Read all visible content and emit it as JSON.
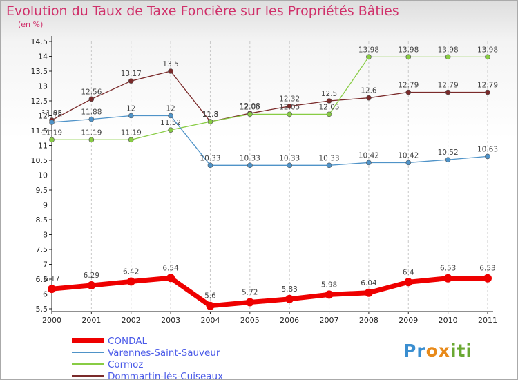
{
  "chart_data": {
    "type": "line",
    "title": "Evolution du Taux de Taxe Foncière sur les Propriétés Bâties",
    "subtitle": "(en %)",
    "x": [
      "2000",
      "2001",
      "2002",
      "2003",
      "2004",
      "2005",
      "2006",
      "2007",
      "2008",
      "2009",
      "2010",
      "2011"
    ],
    "y_ticks": [
      "5.5",
      "6",
      "6.5",
      "7",
      "7.5",
      "8",
      "8.5",
      "9",
      "9.5",
      "10",
      "10.5",
      "11",
      "11.5",
      "12",
      "12.5",
      "13",
      "13.5",
      "14",
      "14.5"
    ],
    "ylim": [
      5.5,
      14.5
    ],
    "grid": "vertical dashed",
    "legend_position": "bottom-left",
    "series": [
      {
        "name": "CONDAL",
        "color": "#ee0000",
        "values": [
          6.17,
          6.29,
          6.42,
          6.54,
          5.6,
          5.72,
          5.83,
          5.98,
          6.04,
          6.4,
          6.53,
          6.53
        ],
        "labels": [
          "6.17",
          "6.29",
          "6.42",
          "6.54",
          "5.6",
          "5.72",
          "5.83",
          "5.98",
          "6.04",
          "6.4",
          "6.53",
          "6.53"
        ]
      },
      {
        "name": "Varennes-Saint-Sauveur",
        "color": "#4f93c8",
        "values": [
          11.78,
          11.88,
          12,
          12,
          10.33,
          10.33,
          10.33,
          10.33,
          10.42,
          10.42,
          10.52,
          10.63
        ],
        "labels": [
          "11.78",
          "11.88",
          "12",
          "12",
          "10.33",
          "10.33",
          "10.33",
          "10.33",
          "10.42",
          "10.42",
          "10.52",
          "10.63"
        ]
      },
      {
        "name": "Cormoz",
        "color": "#88cc44",
        "values": [
          11.19,
          11.19,
          11.19,
          11.52,
          11.8,
          12.05,
          12.05,
          12.05,
          13.98,
          13.98,
          13.98,
          13.98
        ],
        "labels": [
          "11.19",
          "11.19",
          "11.19",
          "11.52",
          "11.8",
          "12.05",
          "12.05",
          "12.05",
          "13.98",
          "13.98",
          "13.98",
          "13.98"
        ]
      },
      {
        "name": "Dommartin-lès-Cuiseaux",
        "color": "#7a2a2a",
        "values": [
          11.85,
          12.56,
          13.17,
          13.5,
          11.8,
          12.08,
          12.32,
          12.5,
          12.6,
          12.79,
          12.79,
          12.79
        ],
        "labels": [
          "11.85",
          "12.56",
          "13.17",
          "13.5",
          "11.8",
          "12.08",
          "12.32",
          "12.5",
          "12.6",
          "12.79",
          "12.79",
          "12.79"
        ]
      }
    ]
  },
  "brand": {
    "part1": "Pr",
    "part2": "ox",
    "part3": "iti"
  }
}
